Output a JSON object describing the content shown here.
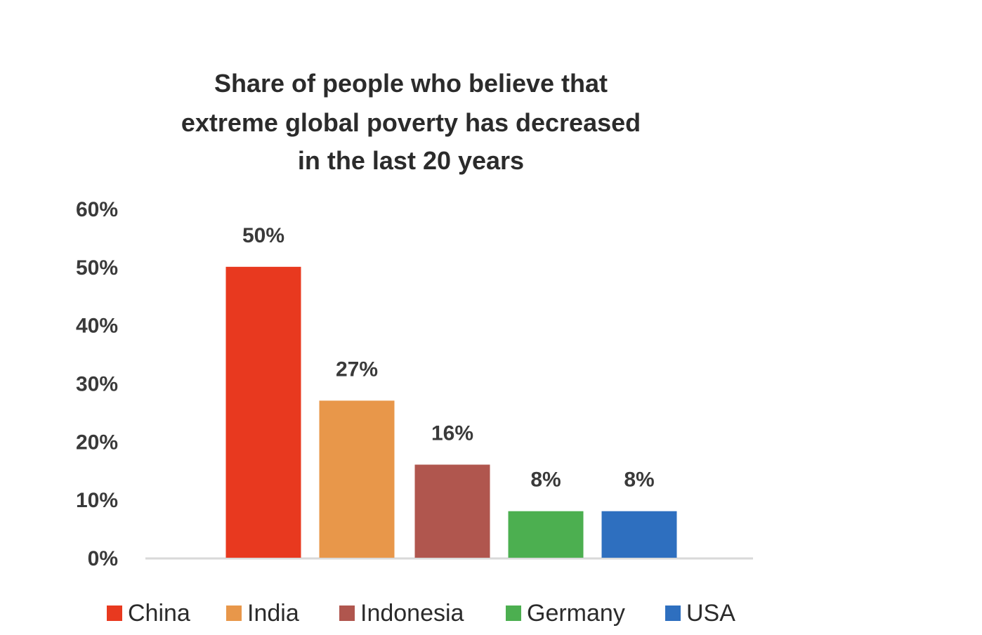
{
  "chart_data": {
    "type": "bar",
    "title_lines": [
      "Share of people who believe that",
      "extreme global poverty has decreased",
      "in the last 20 years"
    ],
    "categories": [
      "China",
      "India",
      "Indonesia",
      "Germany",
      "USA"
    ],
    "values": [
      50,
      27,
      16,
      8,
      8
    ],
    "data_labels": [
      "50%",
      "27%",
      "16%",
      "8%",
      "8%"
    ],
    "colors": [
      "#e8391f",
      "#e8974a",
      "#b0564e",
      "#4caf50",
      "#2e6fbf"
    ],
    "ylim": [
      0,
      60
    ],
    "yticks": [
      0,
      10,
      20,
      30,
      40,
      50,
      60
    ],
    "ytick_labels": [
      "0%",
      "10%",
      "20%",
      "30%",
      "40%",
      "50%",
      "60%"
    ],
    "xlabel": "",
    "ylabel": "",
    "grid": false,
    "legend_position": "bottom",
    "axis_color": "#d9d9d9"
  }
}
